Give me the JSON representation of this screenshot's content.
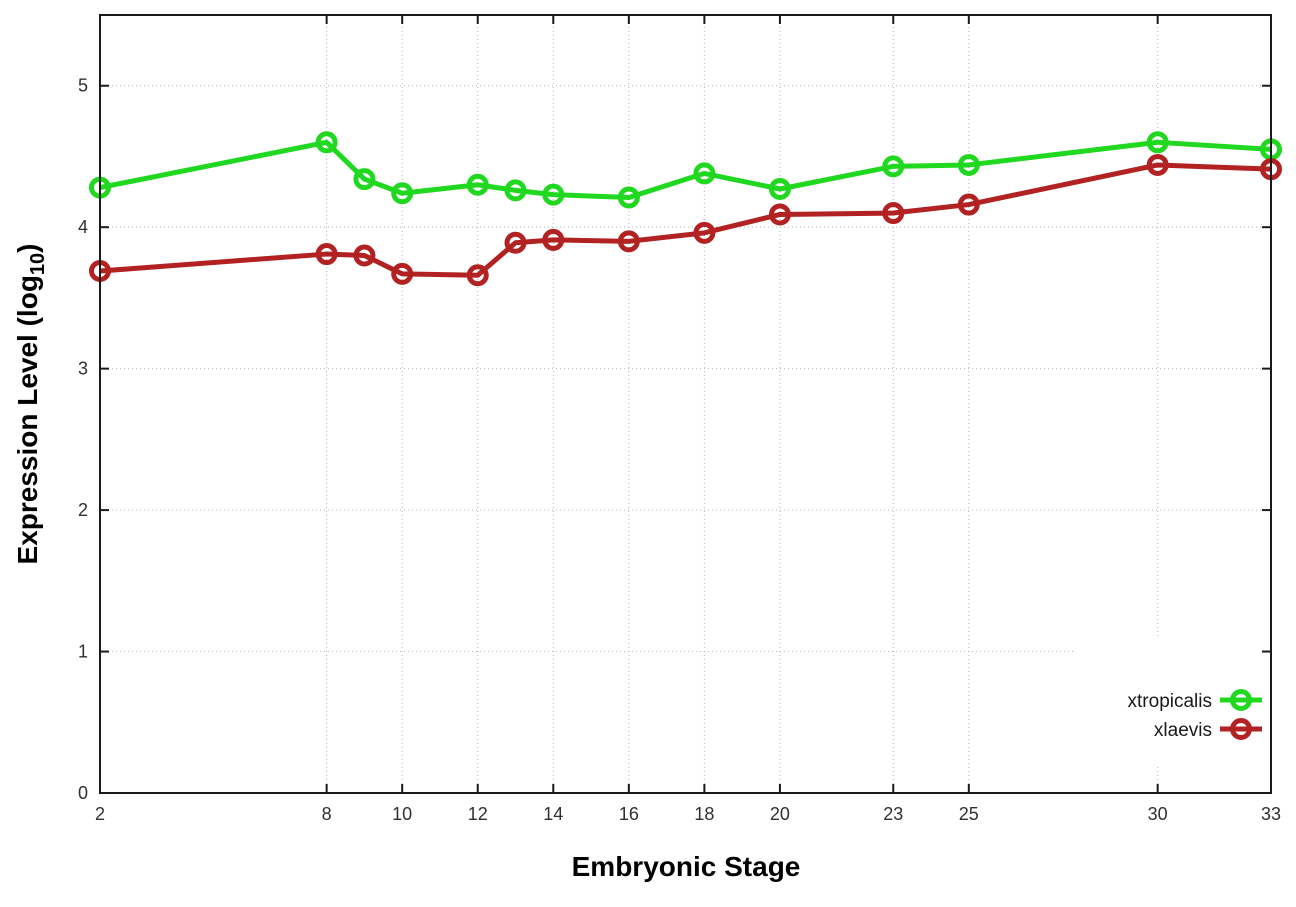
{
  "chart_data": {
    "type": "line",
    "title": "",
    "xlabel": "Embryonic Stage",
    "ylabel_pre": "Expression Level (log",
    "ylabel_sub": "10",
    "ylabel_post": ")",
    "x": [
      2,
      8,
      9,
      10,
      12,
      13,
      14,
      16,
      18,
      20,
      23,
      25,
      30,
      33
    ],
    "xticks": [
      2,
      8,
      10,
      12,
      14,
      16,
      18,
      20,
      23,
      25,
      30,
      33
    ],
    "yticks": [
      0,
      1,
      2,
      3,
      4,
      5
    ],
    "xlim": [
      2,
      33
    ],
    "ylim": [
      0,
      5.5
    ],
    "grid": true,
    "grid_style": "dotted",
    "legend_position": "bottom-right",
    "series": [
      {
        "name": "xtropicalis",
        "color": "#1FD81F",
        "marker": "open-circle",
        "values": [
          4.28,
          4.6,
          4.34,
          4.24,
          4.3,
          4.26,
          4.23,
          4.21,
          4.38,
          4.27,
          4.43,
          4.44,
          4.6,
          4.55
        ]
      },
      {
        "name": "xlaevis",
        "color": "#B22222",
        "marker": "open-circle",
        "values": [
          3.69,
          3.81,
          3.8,
          3.67,
          3.66,
          3.89,
          3.91,
          3.9,
          3.96,
          4.09,
          4.1,
          4.16,
          4.44,
          4.41
        ]
      }
    ],
    "colors": {
      "axis": "#1a1a1a",
      "grid": "#b5b5b5",
      "tick_label": "#303030",
      "legend_text": "#1a1a1a",
      "background": "#ffffff"
    }
  }
}
